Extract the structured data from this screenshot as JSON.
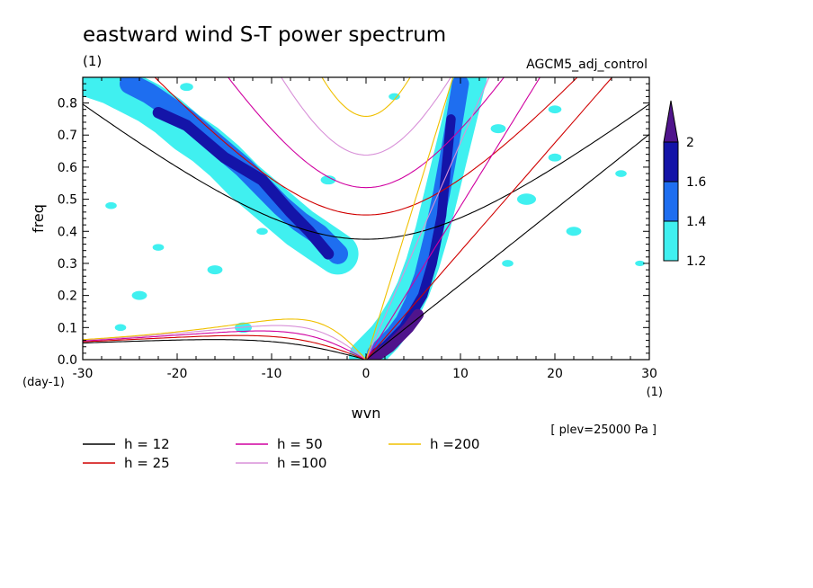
{
  "chart_data": {
    "type": "heatmap",
    "title": "eastward wind S-T power spectrum",
    "title_units": "(1)",
    "experiment": "AGCM5_adj_control",
    "xlabel": "wvn",
    "x_units": "(1)",
    "ylabel": "freq",
    "y_units": "(day-1)",
    "xlim": [
      -30,
      30
    ],
    "ylim": [
      0,
      0.88
    ],
    "x_ticks": [
      "-30",
      "-20",
      "-10",
      "0",
      "10",
      "20",
      "30"
    ],
    "y_ticks": [
      "0.0",
      "0.1",
      "0.2",
      "0.3",
      "0.4",
      "0.5",
      "0.6",
      "0.7",
      "0.8"
    ],
    "level_note": "[ plev=25000 Pa ]",
    "colorbar": {
      "levels": [
        "1.2",
        "1.4",
        "1.6",
        "2"
      ],
      "colors": [
        "#40f0f0",
        "#1e6ef0",
        "#1414a8",
        "#50148c"
      ]
    },
    "dispersion_curves": [
      {
        "label": "h = 12",
        "h": 12,
        "color": "#000000"
      },
      {
        "label": "h = 25",
        "h": 25,
        "color": "#d00000"
      },
      {
        "label": "h = 50",
        "h": 50,
        "color": "#d000a0"
      },
      {
        "label": "h =100",
        "h": 100,
        "color": "#d890d8"
      },
      {
        "label": "h =200",
        "h": 200,
        "color": "#f0c000"
      }
    ],
    "power_regions": [
      {
        "x": [
          -29,
          -27,
          -25,
          -23,
          -21,
          -19,
          -17,
          -15,
          -13,
          -11,
          -9,
          -7,
          -5,
          -3
        ],
        "y": [
          0.88,
          0.86,
          0.83,
          0.8,
          0.76,
          0.71,
          0.67,
          0.62,
          0.56,
          0.51,
          0.46,
          0.41,
          0.37,
          0.33
        ],
        "w": 2.2,
        "level": 1
      },
      {
        "x": [
          -25,
          -23,
          -21,
          -19,
          -17,
          -15,
          -13,
          -11,
          -9,
          -7,
          -5,
          -3
        ],
        "y": [
          0.86,
          0.83,
          0.79,
          0.75,
          0.7,
          0.65,
          0.6,
          0.54,
          0.48,
          0.43,
          0.39,
          0.33
        ],
        "w": 1.1,
        "level": 2
      },
      {
        "x": [
          -22,
          -19,
          -15,
          -11,
          -8,
          -6,
          -4
        ],
        "y": [
          0.77,
          0.73,
          0.63,
          0.56,
          0.46,
          0.4,
          0.33
        ],
        "w": 0.6,
        "level": 3
      },
      {
        "x": [
          0,
          1,
          2,
          3,
          4,
          5,
          6,
          7,
          8,
          9,
          10,
          11
        ],
        "y": [
          0.01,
          0.04,
          0.07,
          0.11,
          0.16,
          0.22,
          0.3,
          0.4,
          0.52,
          0.64,
          0.76,
          0.88
        ],
        "w": 1.8,
        "level": 1
      },
      {
        "x": [
          1,
          2,
          3,
          4,
          5,
          6,
          7,
          8,
          9,
          10
        ],
        "y": [
          0.02,
          0.05,
          0.08,
          0.12,
          0.18,
          0.26,
          0.38,
          0.52,
          0.68,
          0.86
        ],
        "w": 0.9,
        "level": 2
      },
      {
        "x": [
          1,
          2,
          3,
          4,
          5,
          6,
          7,
          8,
          9
        ],
        "y": [
          0.02,
          0.04,
          0.07,
          0.1,
          0.15,
          0.2,
          0.3,
          0.45,
          0.75
        ],
        "w": 0.5,
        "level": 3
      },
      {
        "x": [
          0.5,
          1.5,
          2.5,
          3.5,
          4.5,
          5.5
        ],
        "y": [
          0.005,
          0.02,
          0.04,
          0.07,
          0.1,
          0.14
        ],
        "w": 0.6,
        "level": 4
      }
    ],
    "power_spots": [
      {
        "x": -27,
        "y": 0.48,
        "r": 0.6
      },
      {
        "x": -22,
        "y": 0.35,
        "r": 0.6
      },
      {
        "x": -16,
        "y": 0.28,
        "r": 0.8
      },
      {
        "x": -24,
        "y": 0.2,
        "r": 0.8
      },
      {
        "x": -13,
        "y": 0.1,
        "r": 0.9
      },
      {
        "x": -26,
        "y": 0.1,
        "r": 0.6
      },
      {
        "x": 17,
        "y": 0.5,
        "r": 1.0
      },
      {
        "x": 20,
        "y": 0.63,
        "r": 0.7
      },
      {
        "x": 22,
        "y": 0.4,
        "r": 0.8
      },
      {
        "x": 27,
        "y": 0.58,
        "r": 0.6
      },
      {
        "x": 14,
        "y": 0.72,
        "r": 0.8
      },
      {
        "x": 20,
        "y": 0.78,
        "r": 0.7
      },
      {
        "x": -4,
        "y": 0.56,
        "r": 0.8
      },
      {
        "x": -19,
        "y": 0.85,
        "r": 0.7
      },
      {
        "x": 29,
        "y": 0.3,
        "r": 0.5
      },
      {
        "x": 3,
        "y": 0.82,
        "r": 0.6
      },
      {
        "x": 15,
        "y": 0.3,
        "r": 0.6
      },
      {
        "x": -11,
        "y": 0.4,
        "r": 0.6
      }
    ]
  }
}
